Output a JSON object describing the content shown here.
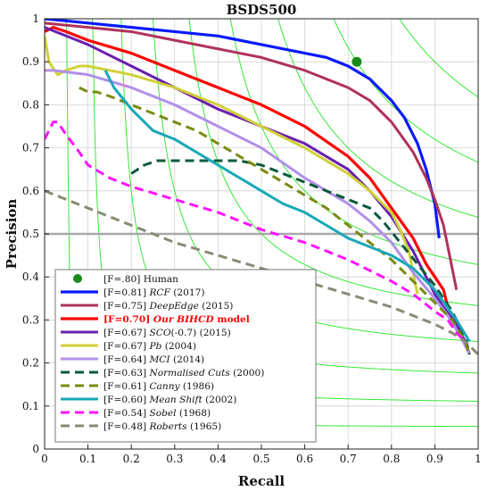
{
  "chart_data": {
    "type": "line",
    "title": "BSDS500",
    "xlabel": "Recall",
    "ylabel": "Precision",
    "xlim": [
      0,
      1
    ],
    "ylim": [
      0,
      1
    ],
    "xticks": [
      "0",
      "0.1",
      "0.2",
      "0.3",
      "0.4",
      "0.5",
      "0.6",
      "0.7",
      "0.8",
      "0.9",
      "1"
    ],
    "yticks": [
      "0",
      "0.1",
      "0.2",
      "0.3",
      "0.4",
      "0.5",
      "0.6",
      "0.7",
      "0.8",
      "0.9",
      "1"
    ],
    "grid": true,
    "iso_f_lines": true,
    "reference_line_y": 0.5,
    "legend_position": "lower-left",
    "human_point": {
      "x": 0.72,
      "y": 0.9,
      "color": "#1a8a1a",
      "label_plain": "[F=.80] Human"
    },
    "series": [
      {
        "label_plain": "[F=0.81] ",
        "label_italic": "RCF",
        "label_tail": " (2017)",
        "color": "#0a1aff",
        "dash": "solid",
        "width": 3.2,
        "x": [
          0.0,
          0.1,
          0.2,
          0.3,
          0.4,
          0.5,
          0.6,
          0.65,
          0.7,
          0.75,
          0.8,
          0.83,
          0.86,
          0.88,
          0.9,
          0.91
        ],
        "y": [
          1.0,
          0.99,
          0.98,
          0.97,
          0.96,
          0.94,
          0.92,
          0.91,
          0.89,
          0.86,
          0.81,
          0.77,
          0.71,
          0.65,
          0.57,
          0.49
        ]
      },
      {
        "label_plain": "[F=0.75] ",
        "label_italic": "DeepEdge",
        "label_tail": " (2015)",
        "color": "#b0325a",
        "dash": "solid",
        "width": 3.0,
        "x": [
          0.0,
          0.1,
          0.2,
          0.3,
          0.4,
          0.5,
          0.6,
          0.7,
          0.75,
          0.8,
          0.85,
          0.88,
          0.9,
          0.92,
          0.93,
          0.94,
          0.95
        ],
        "y": [
          0.99,
          0.98,
          0.97,
          0.95,
          0.93,
          0.91,
          0.88,
          0.84,
          0.81,
          0.76,
          0.69,
          0.63,
          0.58,
          0.52,
          0.47,
          0.42,
          0.37
        ]
      },
      {
        "label_plain": "[F=0.70] ",
        "label_italic": "Our BIHCD",
        "label_tail": " model",
        "color": "#ff0000",
        "dash": "solid",
        "width": 3.2,
        "bold_red_label": true,
        "x": [
          0.0,
          0.02,
          0.05,
          0.1,
          0.2,
          0.3,
          0.4,
          0.5,
          0.6,
          0.7,
          0.75,
          0.8,
          0.85,
          0.88,
          0.9,
          0.92,
          0.93
        ],
        "y": [
          0.97,
          0.98,
          0.97,
          0.95,
          0.92,
          0.88,
          0.84,
          0.8,
          0.75,
          0.68,
          0.63,
          0.56,
          0.49,
          0.43,
          0.4,
          0.37,
          0.33
        ]
      },
      {
        "label_plain": "[F=0.67] ",
        "label_italic": "SCO",
        "label_tail": "(-0.7) (2015)",
        "color": "#6a1eb0",
        "dash": "solid",
        "width": 3.0,
        "x": [
          0.0,
          0.05,
          0.1,
          0.2,
          0.3,
          0.4,
          0.5,
          0.6,
          0.7,
          0.75,
          0.8,
          0.85,
          0.88,
          0.9,
          0.92,
          0.95,
          0.97,
          0.98
        ],
        "y": [
          0.98,
          0.96,
          0.94,
          0.89,
          0.84,
          0.79,
          0.75,
          0.71,
          0.65,
          0.6,
          0.54,
          0.46,
          0.4,
          0.36,
          0.33,
          0.29,
          0.25,
          0.22
        ]
      },
      {
        "label_plain": "[F=0.67] ",
        "label_italic": "Pb",
        "label_tail": " (2004)",
        "color": "#d0d038",
        "dash": "solid",
        "width": 3.0,
        "x": [
          0.0,
          0.01,
          0.03,
          0.05,
          0.08,
          0.1,
          0.2,
          0.3,
          0.4,
          0.5,
          0.6,
          0.7,
          0.75,
          0.8,
          0.82,
          0.84,
          0.85,
          0.86
        ],
        "y": [
          0.96,
          0.9,
          0.87,
          0.88,
          0.89,
          0.89,
          0.87,
          0.84,
          0.8,
          0.75,
          0.7,
          0.64,
          0.6,
          0.55,
          0.51,
          0.46,
          0.41,
          0.36
        ]
      },
      {
        "label_plain": "[F=0.64] ",
        "label_italic": "MCI",
        "label_tail": " (2014)",
        "color": "#b090e8",
        "dash": "solid",
        "width": 3.0,
        "x": [
          0.0,
          0.02,
          0.1,
          0.2,
          0.3,
          0.4,
          0.5,
          0.6,
          0.7,
          0.75,
          0.8,
          0.85,
          0.9,
          0.93,
          0.96,
          0.98
        ],
        "y": [
          0.88,
          0.88,
          0.87,
          0.84,
          0.8,
          0.75,
          0.7,
          0.63,
          0.57,
          0.53,
          0.48,
          0.41,
          0.35,
          0.31,
          0.26,
          0.22
        ]
      },
      {
        "label_plain": "[F=0.63] ",
        "label_italic": "Normalised Cuts",
        "label_tail": " (2000)",
        "color": "#0a5a3a",
        "dash": "10,6",
        "width": 3.0,
        "x": [
          0.2,
          0.23,
          0.26,
          0.3,
          0.35,
          0.4,
          0.45,
          0.5,
          0.55,
          0.6,
          0.65,
          0.7,
          0.75,
          0.78,
          0.82,
          0.86,
          0.9,
          0.94,
          0.97,
          0.98
        ],
        "y": [
          0.64,
          0.66,
          0.67,
          0.67,
          0.67,
          0.67,
          0.67,
          0.66,
          0.64,
          0.62,
          0.6,
          0.58,
          0.56,
          0.53,
          0.48,
          0.43,
          0.38,
          0.32,
          0.26,
          0.22
        ]
      },
      {
        "label_plain": "[F=0.61] ",
        "label_italic": "Canny",
        "label_tail": " (1986)",
        "color": "#7a8a12",
        "dash": "10,6",
        "width": 3.0,
        "x": [
          0.08,
          0.1,
          0.12,
          0.15,
          0.2,
          0.25,
          0.3,
          0.35,
          0.4,
          0.45,
          0.5,
          0.55,
          0.6,
          0.65,
          0.7,
          0.75,
          0.8,
          0.85,
          0.9,
          0.94,
          0.97,
          0.98
        ],
        "y": [
          0.84,
          0.83,
          0.83,
          0.82,
          0.8,
          0.78,
          0.76,
          0.74,
          0.71,
          0.68,
          0.65,
          0.62,
          0.59,
          0.56,
          0.52,
          0.48,
          0.44,
          0.39,
          0.34,
          0.3,
          0.25,
          0.22
        ]
      },
      {
        "label_plain": "[F=0.60] ",
        "label_italic": "Mean Shift",
        "label_tail": " (2002)",
        "color": "#18a8b8",
        "dash": "solid",
        "width": 3.0,
        "x": [
          0.14,
          0.16,
          0.2,
          0.25,
          0.3,
          0.35,
          0.4,
          0.45,
          0.5,
          0.55,
          0.6,
          0.65,
          0.7,
          0.75,
          0.8,
          0.85,
          0.9,
          0.95,
          0.98
        ],
        "y": [
          0.88,
          0.84,
          0.79,
          0.74,
          0.72,
          0.69,
          0.66,
          0.63,
          0.6,
          0.57,
          0.55,
          0.52,
          0.49,
          0.47,
          0.45,
          0.42,
          0.37,
          0.3,
          0.25
        ]
      },
      {
        "label_plain": "[F=0.54] ",
        "label_italic": "Sobel",
        "label_tail": " (1968)",
        "color": "#ff12ff",
        "dash": "10,6",
        "width": 3.0,
        "x": [
          0.0,
          0.01,
          0.02,
          0.03,
          0.05,
          0.08,
          0.1,
          0.15,
          0.2,
          0.3,
          0.4,
          0.5,
          0.6,
          0.7,
          0.8,
          0.85,
          0.9,
          0.93,
          0.95,
          0.97
        ],
        "y": [
          0.72,
          0.74,
          0.76,
          0.76,
          0.73,
          0.69,
          0.66,
          0.63,
          0.61,
          0.58,
          0.55,
          0.51,
          0.48,
          0.44,
          0.39,
          0.36,
          0.32,
          0.3,
          0.27,
          0.25
        ]
      },
      {
        "label_plain": "[F=0.48] ",
        "label_italic": "Roberts",
        "label_tail": " (1965)",
        "color": "#8a8a76",
        "dash": "10,6",
        "width": 3.0,
        "x": [
          0.0,
          0.05,
          0.1,
          0.2,
          0.3,
          0.4,
          0.5,
          0.6,
          0.7,
          0.8,
          0.85,
          0.9,
          0.94,
          0.97,
          1.0
        ],
        "y": [
          0.6,
          0.58,
          0.56,
          0.52,
          0.48,
          0.45,
          0.42,
          0.39,
          0.36,
          0.33,
          0.31,
          0.29,
          0.27,
          0.25,
          0.22
        ]
      }
    ]
  }
}
